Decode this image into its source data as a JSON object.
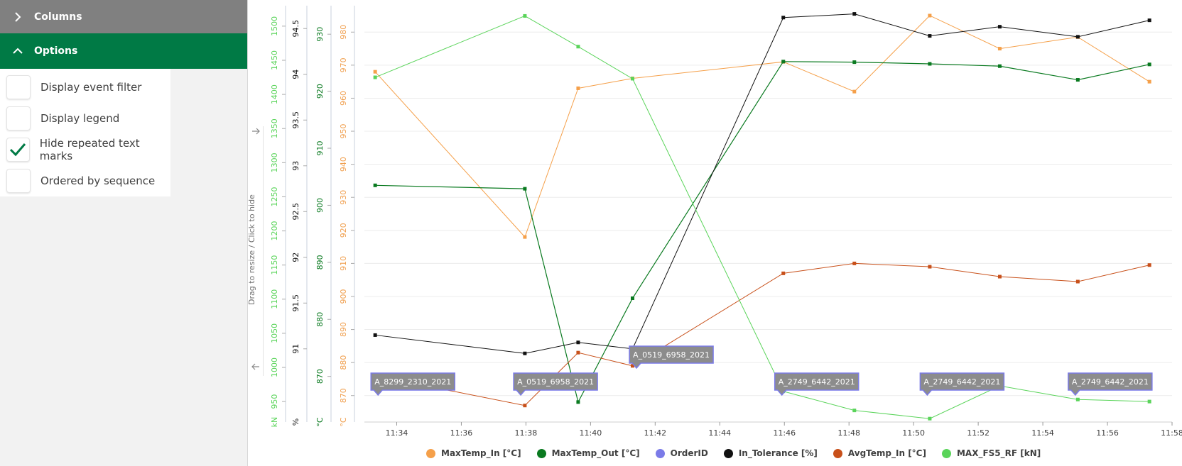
{
  "sidebar": {
    "columns_label": "Columns",
    "options_label": "Options",
    "options": [
      {
        "label": "Display event filter",
        "checked": false
      },
      {
        "label": "Display legend",
        "checked": false
      },
      {
        "label": "Hide repeated text marks",
        "checked": true
      },
      {
        "label": "Ordered by sequence",
        "checked": false
      }
    ],
    "resize_hint": "Drag to resize / Click to hide"
  },
  "colors": {
    "accent": "#007a45",
    "header_grey": "#808080",
    "tooltip_bg": "#8c8c8c",
    "tooltip_border": "#7b7be8"
  },
  "chart_data": {
    "type": "line",
    "x_range": [
      "11:33",
      "11:58"
    ],
    "x_ticks": [
      "11:34",
      "11:36",
      "11:38",
      "11:40",
      "11:42",
      "11:44",
      "11:46",
      "11:48",
      "11:50",
      "11:52",
      "11:54",
      "11:56",
      "11:58"
    ],
    "grid": true,
    "legend_position": "bottom",
    "axes": [
      {
        "id": "kn",
        "unit": "kN",
        "color": "#5ad45a",
        "range": [
          920,
          1530
        ],
        "ticks": [
          950,
          1000,
          1050,
          1100,
          1150,
          1200,
          1250,
          1300,
          1350,
          1400,
          1450,
          1500
        ]
      },
      {
        "id": "pct",
        "unit": "%",
        "color": "#111111",
        "range": [
          90.2,
          94.75
        ],
        "ticks": [
          91,
          91.5,
          92,
          92.5,
          93,
          93.5,
          94,
          94.5
        ]
      },
      {
        "id": "degout",
        "unit": "°C",
        "color": "#0a7a20",
        "range": [
          862,
          935
        ],
        "ticks": [
          870,
          880,
          890,
          900,
          910,
          920,
          930
        ]
      },
      {
        "id": "degin",
        "unit": "°C",
        "color": "#f0a050",
        "range": [
          862,
          988
        ],
        "ticks": [
          870,
          880,
          890,
          900,
          910,
          920,
          930,
          940,
          950,
          960,
          970,
          980
        ]
      }
    ],
    "series": [
      {
        "name": "MaxTemp_In [°C]",
        "axis": "degin",
        "color": "#f5a04a",
        "width": 1,
        "points": [
          [
            "11:33:20",
            968
          ],
          [
            "11:37:58",
            918
          ],
          [
            "11:39:37",
            963
          ],
          [
            "11:41:18",
            966
          ],
          [
            "11:45:58",
            971
          ],
          [
            "11:48:10",
            962
          ],
          [
            "11:50:30",
            985
          ],
          [
            "11:52:40",
            975
          ],
          [
            "11:55:05",
            978.5
          ],
          [
            "11:57:18",
            965
          ]
        ]
      },
      {
        "name": "MaxTemp_Out [°C]",
        "axis": "degout",
        "color": "#0a7a20",
        "width": 1.2,
        "points": [
          [
            "11:33:20",
            903.5
          ],
          [
            "11:37:58",
            902.9
          ],
          [
            "11:39:37",
            865.5
          ],
          [
            "11:41:18",
            883.7
          ],
          [
            "11:45:58",
            925.2
          ],
          [
            "11:48:10",
            925.1
          ],
          [
            "11:50:30",
            924.8
          ],
          [
            "11:52:40",
            924.4
          ],
          [
            "11:55:05",
            922
          ],
          [
            "11:57:18",
            924.7
          ]
        ]
      },
      {
        "name": "OrderID",
        "axis": "none",
        "color": "#7b7be8",
        "width": 0,
        "points": []
      },
      {
        "name": "In_Tolerance [%]",
        "axis": "pct",
        "color": "#111111",
        "width": 1,
        "points": [
          [
            "11:33:20",
            91.15
          ],
          [
            "11:37:58",
            90.95
          ],
          [
            "11:39:37",
            91.07
          ],
          [
            "11:41:18",
            91.0
          ],
          [
            "11:45:58",
            94.62
          ],
          [
            "11:48:10",
            94.66
          ],
          [
            "11:50:30",
            94.42
          ],
          [
            "11:52:40",
            94.52
          ],
          [
            "11:55:05",
            94.41
          ],
          [
            "11:57:18",
            94.59
          ]
        ]
      },
      {
        "name": "AvgTemp_In [°C]",
        "axis": "degin",
        "color": "#c8501a",
        "width": 1,
        "points": [
          [
            "11:33:20",
            876
          ],
          [
            "11:37:58",
            867
          ],
          [
            "11:39:37",
            883
          ],
          [
            "11:41:18",
            879
          ],
          [
            "11:45:58",
            907
          ],
          [
            "11:48:10",
            910
          ],
          [
            "11:50:30",
            909
          ],
          [
            "11:52:40",
            906
          ],
          [
            "11:55:05",
            904.5
          ],
          [
            "11:57:18",
            909.5
          ]
        ]
      },
      {
        "name": "MAX_FS5_RF [kN]",
        "axis": "kn",
        "color": "#5ad45a",
        "width": 1,
        "points": [
          [
            "11:33:20",
            1425
          ],
          [
            "11:37:58",
            1515
          ],
          [
            "11:39:37",
            1470
          ],
          [
            "11:41:18",
            1423
          ],
          [
            "11:45:58",
            965
          ],
          [
            "11:48:10",
            937
          ],
          [
            "11:50:30",
            925
          ],
          [
            "11:52:40",
            973
          ],
          [
            "11:55:05",
            953
          ],
          [
            "11:57:18",
            950
          ]
        ]
      }
    ],
    "annotations": [
      {
        "label": "A_8299_2310_2021",
        "time": "11:34:30"
      },
      {
        "label": "A_0519_6958_2021",
        "time": "11:38:55"
      },
      {
        "label": "A_0519_6958_2021",
        "time": "11:42:30"
      },
      {
        "label": "A_2749_6442_2021",
        "time": "11:47:00"
      },
      {
        "label": "A_2749_6442_2021",
        "time": "11:51:30"
      },
      {
        "label": "A_2749_6442_2021",
        "time": "11:56:05"
      }
    ]
  }
}
